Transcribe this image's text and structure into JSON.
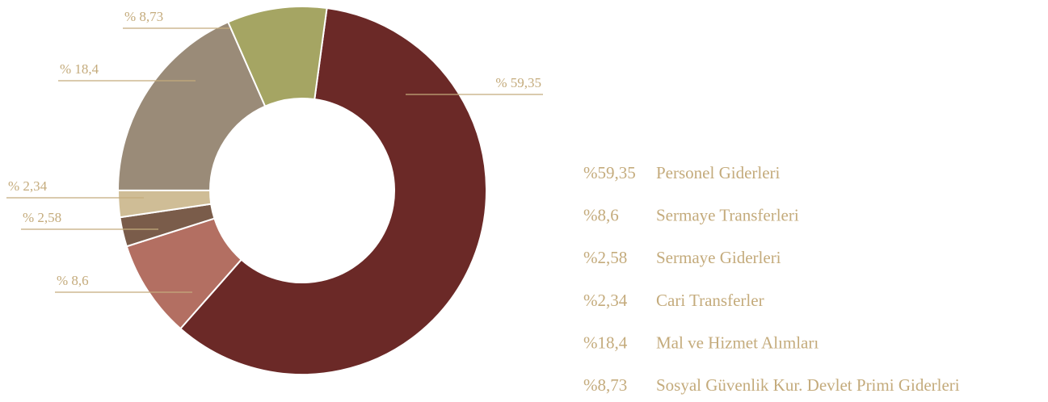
{
  "chart_data": {
    "type": "pie",
    "categories": [
      "Personel Giderleri",
      "Sermaye Transferleri",
      "Sermaye Giderleri",
      "Cari Transferler",
      "Mal ve Hizmet Alımları",
      "Sosyal Güvenlik Kur. Devlet Primi Giderleri"
    ],
    "values": [
      59.35,
      8.6,
      2.58,
      2.34,
      18.4,
      8.73
    ],
    "value_labels": [
      "% 59,35",
      "% 8,6",
      "% 2,58",
      "% 2,34",
      "% 18,4",
      "% 8,73"
    ],
    "legend_value_labels": [
      "%59,35",
      "%8,6",
      "%2,58",
      "%2,34",
      "%18,4",
      "%8,73"
    ],
    "colors": [
      "#6b2927",
      "#b36f62",
      "#7a5c4a",
      "#cfbd96",
      "#9a8b78",
      "#a5a563"
    ]
  }
}
